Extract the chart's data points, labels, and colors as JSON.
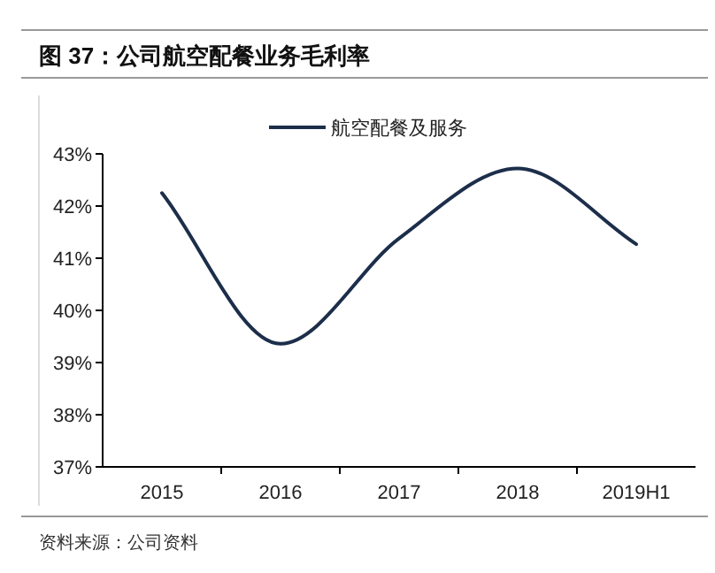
{
  "chart_data": {
    "type": "line",
    "title": "图 37：公司航空配餐业务毛利率",
    "categories": [
      "2015",
      "2016",
      "2017",
      "2018",
      "2019H1"
    ],
    "series": [
      {
        "name": "航空配餐及服务",
        "color": "#1c2e4a",
        "values": [
          42.25,
          39.36,
          41.38,
          42.72,
          41.27
        ]
      }
    ],
    "ylim": [
      37,
      43
    ],
    "yticks": [
      {
        "value": 37,
        "label": "37%"
      },
      {
        "value": 38,
        "label": "38%"
      },
      {
        "value": 39,
        "label": "39%"
      },
      {
        "value": 40,
        "label": "40%"
      },
      {
        "value": 41,
        "label": "41%"
      },
      {
        "value": 42,
        "label": "42%"
      },
      {
        "value": 43,
        "label": "43%"
      }
    ],
    "grid": false,
    "legend": "top",
    "marker": "none",
    "line_style": "solid",
    "annotations": [
      "资料来源：公司资料"
    ]
  }
}
